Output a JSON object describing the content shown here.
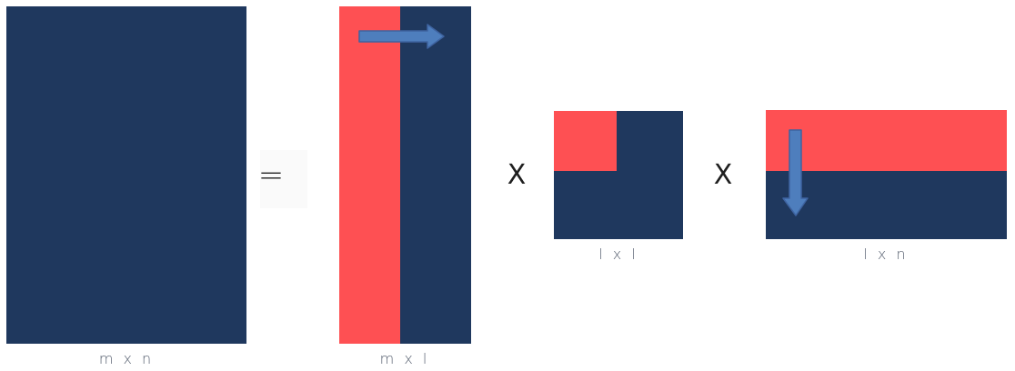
{
  "colors": {
    "navy": "#1f385e",
    "coral": "#fe5053",
    "arrow": "#4e7ebd",
    "arrow_border": "#3e63a0"
  },
  "operators": {
    "equals": "=",
    "times_1": "X",
    "times_2": "X"
  },
  "matrices": {
    "a": {
      "label": "m x n"
    },
    "u": {
      "label": "m x l"
    },
    "s": {
      "label": "l x l"
    },
    "v": {
      "label": "l x n"
    }
  },
  "arrows": {
    "u_direction": "right",
    "v_direction": "down"
  }
}
